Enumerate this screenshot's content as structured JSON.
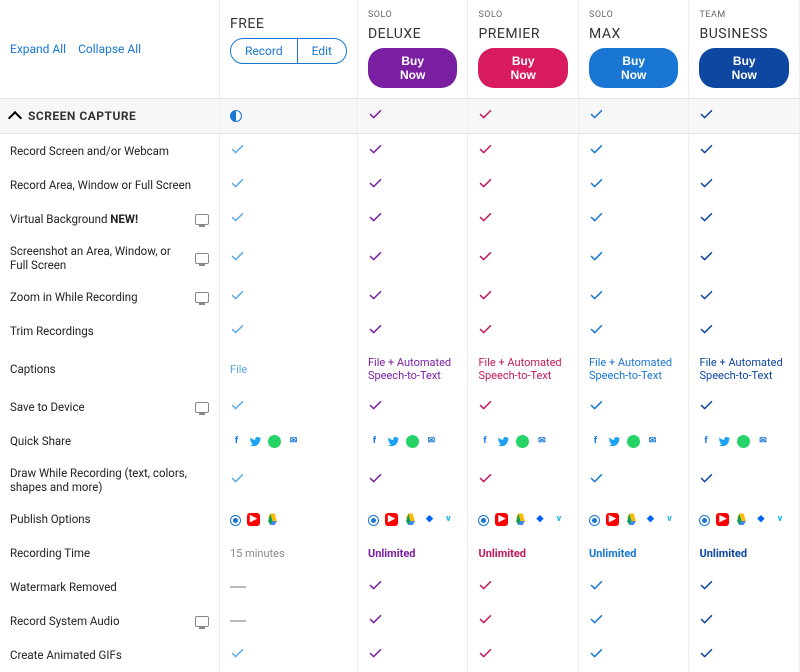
{
  "controls": {
    "expand": "Expand All",
    "collapse": "Collapse All"
  },
  "columns": [
    {
      "tier": "",
      "plan": "FREE",
      "cta_type": "segment",
      "seg": [
        "Record",
        "Edit"
      ],
      "accent": "#1976d2",
      "check_color": "#5aa9e6"
    },
    {
      "tier": "SOLO",
      "plan": "DELUXE",
      "cta_type": "buy",
      "cta": "Buy Now",
      "accent": "#7b1fa2",
      "check_color": "#7b1fa2"
    },
    {
      "tier": "SOLO",
      "plan": "PREMIER",
      "cta_type": "buy",
      "cta": "Buy Now",
      "accent": "#d81b60",
      "check_color": "#c2185b"
    },
    {
      "tier": "SOLO",
      "plan": "MAX",
      "cta_type": "buy",
      "cta": "Buy Now",
      "accent": "#1976d2",
      "check_color": "#1976d2"
    },
    {
      "tier": "TEAM",
      "plan": "BUSINESS",
      "cta_type": "buy",
      "cta": "Buy Now",
      "accent": "#0d47a1",
      "check_color": "#0d47a1"
    }
  ],
  "section": {
    "title": "SCREEN CAPTURE",
    "header_cells": [
      "half",
      "check",
      "check",
      "check",
      "check"
    ]
  },
  "features": [
    {
      "label": "Record Screen and/or Webcam",
      "cells": [
        "check",
        "check",
        "check",
        "check",
        "check"
      ]
    },
    {
      "label": "Record Area, Window or Full Screen",
      "cells": [
        "check",
        "check",
        "check",
        "check",
        "check"
      ]
    },
    {
      "label": "Virtual Background",
      "new": "NEW!",
      "monitor": true,
      "cells": [
        "check",
        "check",
        "check",
        "check",
        "check"
      ]
    },
    {
      "label": "Screenshot an Area, Window, or Full Screen",
      "monitor": true,
      "cells": [
        "check",
        "check",
        "check",
        "check",
        "check"
      ]
    },
    {
      "label": "Zoom in While Recording",
      "monitor": true,
      "cells": [
        "check",
        "check",
        "check",
        "check",
        "check"
      ]
    },
    {
      "label": "Trim Recordings",
      "cells": [
        "check",
        "check",
        "check",
        "check",
        "check"
      ]
    },
    {
      "label": "Captions",
      "cells": [
        {
          "type": "text",
          "value": "File",
          "color": "#5aa9e6"
        },
        {
          "type": "text",
          "value": "File + Automated Speech-to-Text",
          "color": "#7b1fa2"
        },
        {
          "type": "text",
          "value": "File + Automated Speech-to-Text",
          "color": "#c2185b"
        },
        {
          "type": "text",
          "value": "File + Automated Speech-to-Text",
          "color": "#1976d2"
        },
        {
          "type": "text",
          "value": "File + Automated Speech-to-Text",
          "color": "#0d47a1"
        }
      ]
    },
    {
      "label": "Save to Device",
      "monitor": true,
      "cells": [
        "check",
        "check",
        "check",
        "check",
        "check"
      ]
    },
    {
      "label": "Quick Share",
      "cells": [
        "share4",
        "share4",
        "share4",
        "share4",
        "share4"
      ]
    },
    {
      "label": "Draw While Recording (text, colors, shapes and more)",
      "cells": [
        "check",
        "check",
        "check",
        "check",
        "check"
      ]
    },
    {
      "label": "Publish Options",
      "cells": [
        "pub3",
        "pub5",
        "pub5",
        "pub5",
        "pub5"
      ]
    },
    {
      "label": "Recording Time",
      "cells": [
        {
          "type": "text",
          "value": "15 minutes",
          "color": "#888"
        },
        {
          "type": "text",
          "value": "Unlimited",
          "color": "#7b1fa2",
          "bold": true
        },
        {
          "type": "text",
          "value": "Unlimited",
          "color": "#c2185b",
          "bold": true
        },
        {
          "type": "text",
          "value": "Unlimited",
          "color": "#1976d2",
          "bold": true
        },
        {
          "type": "text",
          "value": "Unlimited",
          "color": "#0d47a1",
          "bold": true
        }
      ]
    },
    {
      "label": "Watermark Removed",
      "cells": [
        "dash",
        "check",
        "check",
        "check",
        "check"
      ]
    },
    {
      "label": "Record System Audio",
      "monitor": true,
      "cells": [
        "dash",
        "check",
        "check",
        "check",
        "check"
      ]
    },
    {
      "label": "Create Animated GIFs",
      "cells": [
        "check",
        "check",
        "check",
        "check",
        "check"
      ]
    }
  ],
  "share_icons": [
    {
      "name": "facebook-icon",
      "glyph": "f",
      "bg": "transparent",
      "fg": "#1877f2",
      "bold": true
    },
    {
      "name": "twitter-icon",
      "glyph": "t",
      "bg": "transparent",
      "fg": "#1da1f2",
      "bold": true,
      "svg": "bird"
    },
    {
      "name": "whatsapp-icon",
      "glyph": "",
      "bg": "#25d366",
      "round": true
    },
    {
      "name": "email-icon",
      "glyph": "✉",
      "bg": "transparent",
      "fg": "#1976d2"
    }
  ],
  "publish_icons": {
    "pub3": [
      {
        "name": "screencast-icon",
        "type": "radio"
      },
      {
        "name": "youtube-icon",
        "bg": "#ff0000",
        "glyph": "▶",
        "fg": "#fff"
      },
      {
        "name": "drive-icon",
        "type": "drive"
      }
    ],
    "pub5": [
      {
        "name": "screencast-icon",
        "type": "radio"
      },
      {
        "name": "youtube-icon",
        "bg": "#ff0000",
        "glyph": "▶",
        "fg": "#fff"
      },
      {
        "name": "drive-icon",
        "type": "drive"
      },
      {
        "name": "dropbox-icon",
        "glyph": "◆",
        "fg": "#0061ff",
        "bg": "transparent"
      },
      {
        "name": "vimeo-icon",
        "glyph": "v",
        "fg": "#1ab7ea",
        "bg": "transparent",
        "bold": true
      }
    ]
  }
}
